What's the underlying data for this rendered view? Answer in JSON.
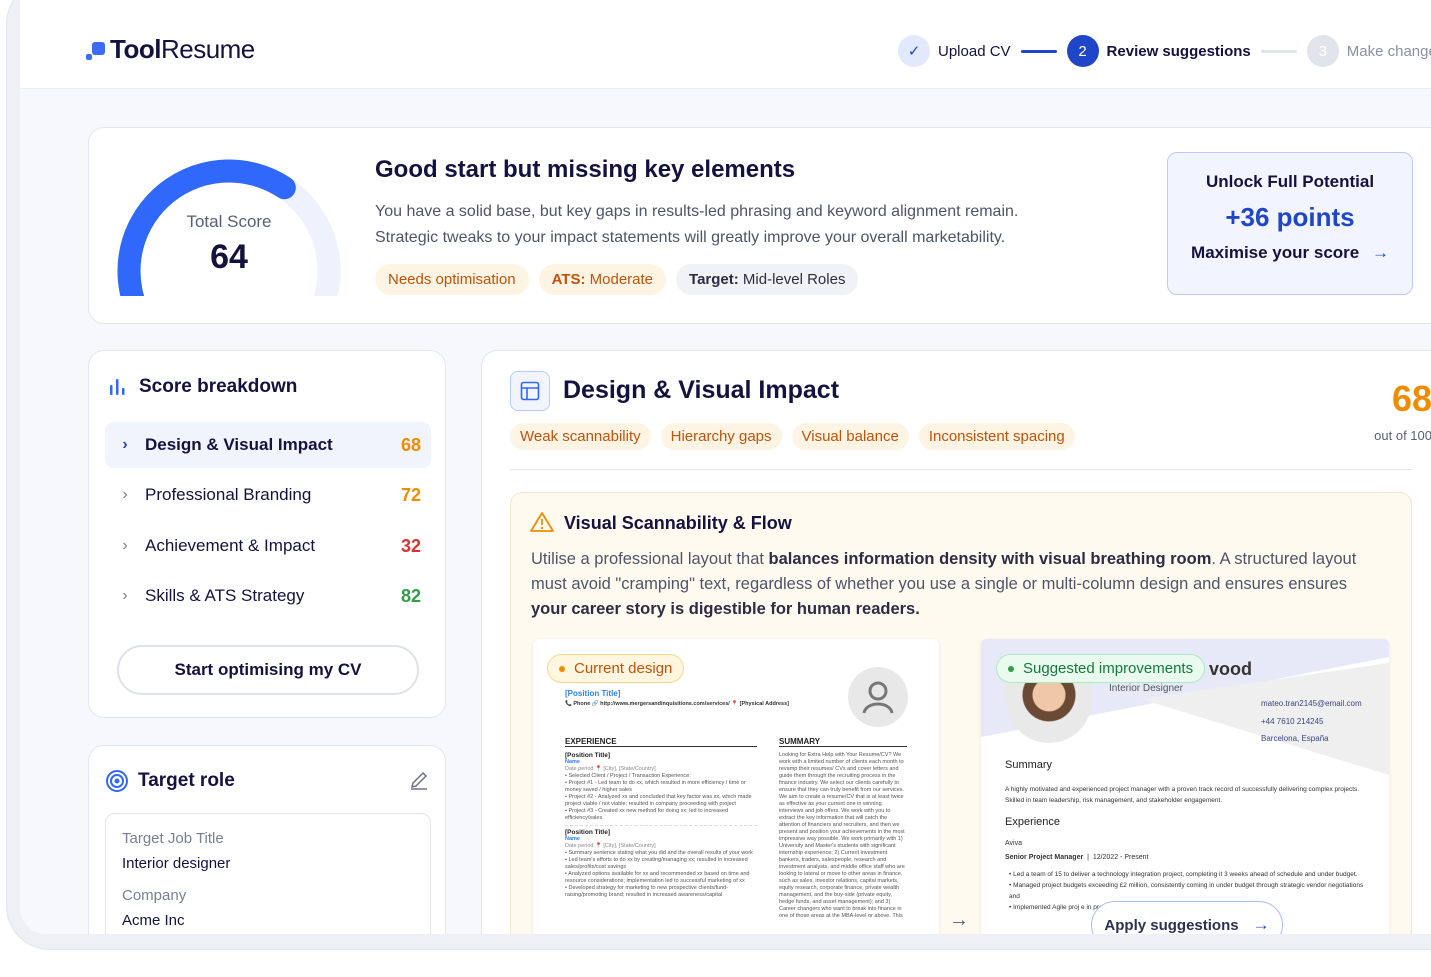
{
  "brand": {
    "name_bold": "Tool",
    "name_rest": "Resume",
    "color": "#3a6cf6"
  },
  "stepper": [
    {
      "label": "Upload CV",
      "state": "done",
      "icon": "check-icon"
    },
    {
      "number": "2",
      "label": "Review suggestions",
      "state": "active"
    },
    {
      "number": "3",
      "label": "Make change",
      "state": "pending"
    }
  ],
  "summary": {
    "score_label": "Total Score",
    "score": "64",
    "score_max": 100,
    "title": "Good start but missing key elements",
    "description_1": "You have a solid base, but key gaps in results-led phrasing and keyword alignment remain.",
    "description_2": "Strategic tweaks to your impact statements will greatly improve your overall marketability.",
    "tags": [
      "Needs optimisation"
    ],
    "ats_label": "ATS:",
    "ats_value": "Moderate",
    "target_label": "Target:",
    "target_value": "Mid-level Roles",
    "unlock": {
      "title": "Unlock Full Potential",
      "points": "+36 points",
      "cta": "Maximise your score"
    }
  },
  "breakdown": {
    "title": "Score breakdown",
    "items": [
      {
        "label": "Design & Visual Impact",
        "score": "68",
        "color": "#f08c00",
        "active": true
      },
      {
        "label": "Professional Branding",
        "score": "72",
        "color": "#f08c00"
      },
      {
        "label": "Achievement & Impact",
        "score": "32",
        "color": "#e03131"
      },
      {
        "label": "Skills & ATS Strategy",
        "score": "82",
        "color": "#2f9e44"
      }
    ],
    "cta": "Start optimising my CV"
  },
  "target_role": {
    "title": "Target role",
    "job_label": "Target Job Title",
    "job_value": "Interior designer",
    "company_label": "Company",
    "company_value": "Acme Inc"
  },
  "detail": {
    "title": "Design & Visual Impact",
    "score": "68",
    "score_sub": "out of 100",
    "tags": [
      "Weak scannability",
      "Hierarchy gaps",
      "Visual balance",
      "Inconsistent spacing"
    ],
    "insight": {
      "title": "Visual Scannability & Flow",
      "t1": "Utilise a professional layout that ",
      "b1": "balances information density with visual breathing room",
      "t2": ". A structured layout must avoid \"cramping\" text, regardless of whether you use a single or multi-column design and ensures ensures ",
      "b2": "your career story is digestible for human readers."
    },
    "current": {
      "badge": "Current design",
      "position": "[Position Title]",
      "contact": "📞 Phone   🔗 http://www.mergersandinquisitions.com/services/   📍 [Physical Address]",
      "exp_heading": "EXPERIENCE",
      "summary_heading": "SUMMARY",
      "job1_title": "[Position Title]",
      "job1_name": "Name",
      "job1_meta": "Date period   📍 [City], [State/Country]",
      "job1_bullets": [
        "Selected Client / Project / Transaction Experience:",
        "Project #1 - Led team to do xx, which resulted in more efficiency / time or money saved / higher sales",
        "Project #2 - Analyzed xx and concluded that key factor was xx, which made project viable / not viable; resulted in company proceeding with project",
        "Project #3 - Created xx new method for doing xx; led to increased efficiency/sales"
      ],
      "job2_title": "[Position Title]",
      "job2_name": "Name",
      "job2_meta": "Date period   📍 [City], [State/Country]",
      "job2_bullets": [
        "Summary sentence stating what you did and the overall results of your work",
        "Led team's efforts to do xx by creating/managing xx; resulted in increased sales/profits/cost savings",
        "Analyzed options available for xx and recommended xx based on time and resource considerations; implementation led to successful marketing of xx",
        "Developed strategy for marketing to new prospective clients/fund-raising/promoting brand; resulted in increased awareness/capital"
      ],
      "summary_text": "Looking for Extra Help with Your Resume/CV? We work with a limited number of clients each month to revamp their resumes/ CVs and cover letters and guide them through the recruiting process in the finance industry. We select our clients carefully to ensure that they can truly benefit from our services. We aim to create a resume/CV that is at least twice as effective as your current one in winning interviews and job offers. We work with you to extract the key information that will catch the attention of financiers and recruiters, and then we present and position your achievements in the most impressive way possible. We work primarily with 1) University and Master's students with significant internship experience; 2) Current investment bankers, traders, salespeople, research and investment analysts, and middle office staff who are looking to lateral or move to other areas in finance, such as sales, investor relations, capital markets, equity research, corporate finance, private wealth management, and the buy-side (private equity, hedge funds, and asset management); and 3) Career changers who want to break into finance in one of those areas at the MBA-level or above. This"
    },
    "suggested": {
      "badge": "Suggested improvements",
      "name_partial": "vood",
      "role": "Interior Designer",
      "email": "mateo.tran2145@email.com",
      "phone": "+44 7610 214245",
      "location": "Barcelona, España",
      "summary_heading": "Summary",
      "summary_text": "A highly motivated and experienced project manager with a proven track record of successfully delivering complex projects. Skilled in team leadership, risk management, and stakeholder engagement.",
      "exp_heading": "Experience",
      "company": "Aviva",
      "job_title": "Senior Project Manager",
      "job_dates": "12/2022 - Present",
      "bullets": [
        "Led a team of 15 to deliver a technology integration project, completing it 3 weeks ahead of schedule and under budget.",
        "Managed project budgets exceeding £2 million, consistently coming in under budget through strategic vendor negotiations and",
        "Implemented Agile proj                                                  e in project delivery speed and a 25% incre"
      ],
      "cta": "Apply suggestions"
    }
  }
}
